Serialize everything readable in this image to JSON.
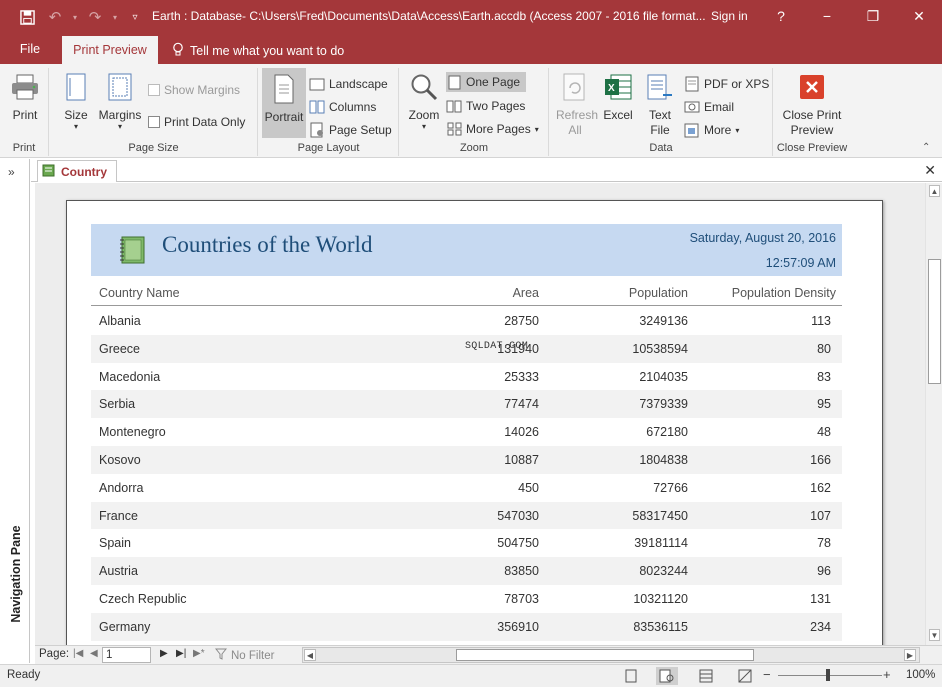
{
  "window": {
    "title": "Earth : Database- C:\\Users\\Fred\\Documents\\Data\\Access\\Earth.accdb (Access 2007 - 2016 file format...",
    "sign_in": "Sign in",
    "help": "?",
    "minimize": "−",
    "restore": "❐",
    "close": "✕"
  },
  "tabs": {
    "file": "File",
    "print_preview": "Print Preview",
    "tell_me": "Tell me what you want to do"
  },
  "ribbon": {
    "print": {
      "label": "Print",
      "group": "Print"
    },
    "page_size": {
      "group": "Page Size",
      "size": "Size",
      "margins": "Margins",
      "show_margins": "Show Margins",
      "print_data_only": "Print Data Only"
    },
    "page_layout": {
      "group": "Page Layout",
      "portrait": "Portrait",
      "landscape": "Landscape",
      "columns": "Columns",
      "page_setup": "Page Setup"
    },
    "zoom": {
      "group": "Zoom",
      "zoom": "Zoom",
      "one_page": "One Page",
      "two_pages": "Two Pages",
      "more_pages": "More Pages"
    },
    "data": {
      "group": "Data",
      "refresh_all": "Refresh All",
      "excel": "Excel",
      "text_file": "Text File",
      "pdf_or_xps": "PDF or XPS",
      "email": "Email",
      "more": "More"
    },
    "close_preview": {
      "group": "Close Preview",
      "close_print_preview": "Close Print Preview"
    }
  },
  "nav_pane": {
    "label": "Navigation Pane"
  },
  "document_tab": {
    "label": "Country"
  },
  "report": {
    "title": "Countries of the World",
    "date": "Saturday, August 20, 2016",
    "time": "12:57:09 AM",
    "columns": [
      "Country Name",
      "Area",
      "Population",
      "Population Density"
    ],
    "rows": [
      [
        "Albania",
        "28750",
        "3249136",
        "113"
      ],
      [
        "Greece",
        "131940",
        "10538594",
        "80"
      ],
      [
        "Macedonia",
        "25333",
        "2104035",
        "83"
      ],
      [
        "Serbia",
        "77474",
        "7379339",
        "95"
      ],
      [
        "Montenegro",
        "14026",
        "672180",
        "48"
      ],
      [
        "Kosovo",
        "10887",
        "1804838",
        "166"
      ],
      [
        "Andorra",
        "450",
        "72766",
        "162"
      ],
      [
        "France",
        "547030",
        "58317450",
        "107"
      ],
      [
        "Spain",
        "504750",
        "39181114",
        "78"
      ],
      [
        "Austria",
        "83850",
        "8023244",
        "96"
      ],
      [
        "Czech Republic",
        "78703",
        "10321120",
        "131"
      ],
      [
        "Germany",
        "356910",
        "83536115",
        "234"
      ]
    ],
    "watermark": "SQLDAT.COM"
  },
  "record_nav": {
    "page_label": "Page:",
    "page_value": "1",
    "no_filter": "No Filter"
  },
  "status": {
    "ready": "Ready",
    "zoom_percent": "100%"
  },
  "colors": {
    "accent": "#a4373a",
    "report_header_bg": "#c6d9f1",
    "report_title": "#1f4e79"
  }
}
